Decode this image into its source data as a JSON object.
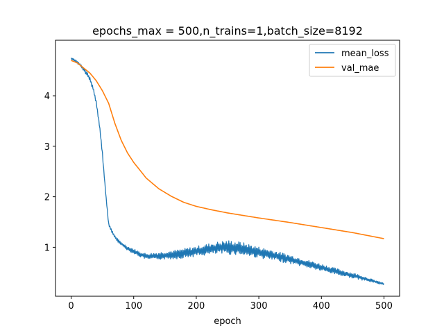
{
  "chart_data": {
    "type": "line",
    "title": "epochs_max = 500,n_trains=1,batch_size=8192",
    "xlabel": "epoch",
    "ylabel": "",
    "xlim": [
      -25,
      525
    ],
    "ylim": [
      0.03,
      5.1
    ],
    "xticks": [
      0,
      100,
      200,
      300,
      400,
      500
    ],
    "yticks": [
      1,
      2,
      3,
      4
    ],
    "grid": false,
    "legend_position": "top-right",
    "series": [
      {
        "name": "mean_loss",
        "color": "#1f77b4",
        "x": [
          0,
          5,
          10,
          15,
          20,
          25,
          30,
          35,
          40,
          45,
          50,
          55,
          60,
          65,
          70,
          75,
          80,
          90,
          100,
          110,
          120,
          130,
          140,
          150,
          170,
          200,
          230,
          250,
          270,
          300,
          330,
          360,
          400,
          430,
          460,
          480,
          500
        ],
        "y": [
          4.74,
          4.71,
          4.66,
          4.6,
          4.52,
          4.44,
          4.33,
          4.15,
          3.88,
          3.45,
          2.85,
          2.1,
          1.45,
          1.32,
          1.2,
          1.13,
          1.07,
          0.98,
          0.92,
          0.86,
          0.82,
          0.82,
          0.83,
          0.84,
          0.86,
          0.92,
          0.98,
          1.0,
          0.98,
          0.9,
          0.82,
          0.73,
          0.6,
          0.5,
          0.41,
          0.34,
          0.27
        ],
        "noise_band": [
          0.02,
          0.03,
          0.03,
          0.03,
          0.04,
          0.04,
          0.04,
          0.04,
          0.04,
          0.04,
          0.04,
          0.03,
          0.03,
          0.03,
          0.03,
          0.03,
          0.03,
          0.04,
          0.05,
          0.05,
          0.06,
          0.07,
          0.07,
          0.08,
          0.09,
          0.1,
          0.12,
          0.14,
          0.13,
          0.11,
          0.1,
          0.08,
          0.07,
          0.06,
          0.05,
          0.03,
          0.02
        ]
      },
      {
        "name": "val_mae",
        "color": "#ff7f0e",
        "x": [
          0,
          10,
          20,
          30,
          40,
          50,
          60,
          70,
          80,
          90,
          100,
          120,
          140,
          160,
          180,
          200,
          225,
          250,
          275,
          300,
          350,
          400,
          450,
          500
        ],
        "y": [
          4.7,
          4.65,
          4.55,
          4.45,
          4.3,
          4.1,
          3.85,
          3.45,
          3.12,
          2.87,
          2.68,
          2.37,
          2.16,
          2.01,
          1.89,
          1.81,
          1.74,
          1.68,
          1.63,
          1.58,
          1.49,
          1.39,
          1.29,
          1.17
        ]
      }
    ]
  }
}
